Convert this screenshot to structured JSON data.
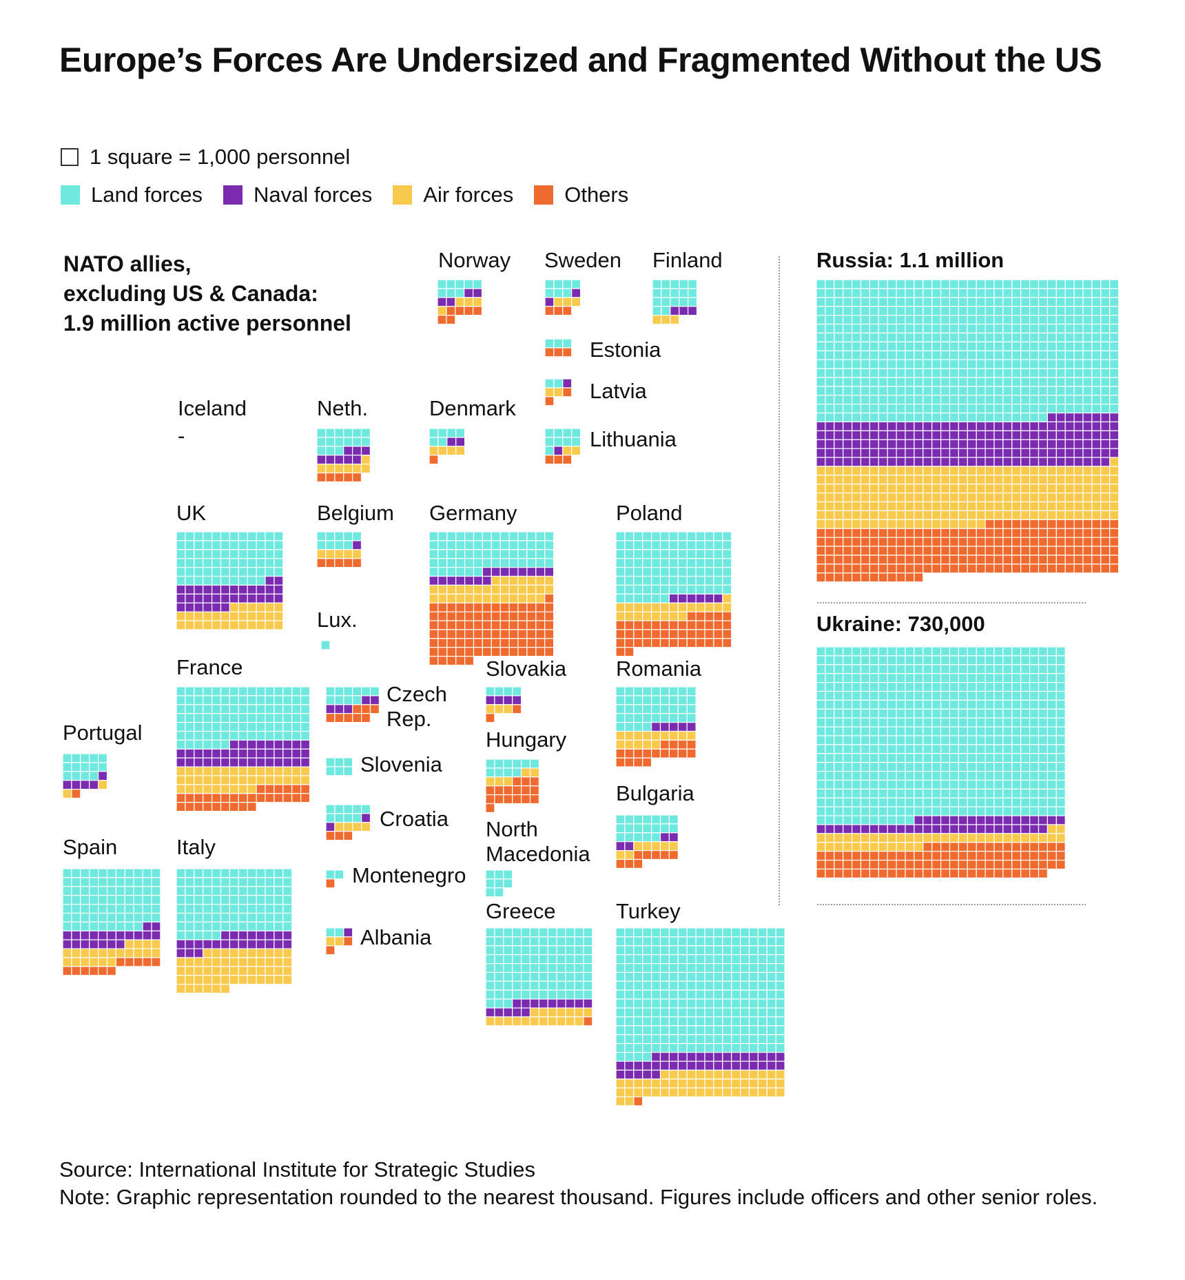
{
  "title": "Europe’s Forces Are Undersized and Fragmented Without the US",
  "legend": {
    "scale": "1 square = 1,000 personnel",
    "items": [
      {
        "label": "Land forces",
        "color": "#6FE8E0"
      },
      {
        "label": "Naval forces",
        "color": "#7A2BB0"
      },
      {
        "label": "Air forces",
        "color": "#F7C94C"
      },
      {
        "label": "Others",
        "color": "#EF6A2E"
      }
    ]
  },
  "subhead": {
    "line1": "NATO allies,",
    "line2": "excluding US & Canada:",
    "line3": "1.9 million active personnel"
  },
  "source": "Source: International Institute for Strategic Studies",
  "note": "Note: Graphic representation rounded to the nearest thousand. Figures include officers and other senior roles.",
  "chart_data": {
    "type": "waffle",
    "unit": "1 square = 1,000 personnel",
    "categories": [
      "Land forces",
      "Naval forces",
      "Air forces",
      "Others"
    ],
    "countries": [
      {
        "name": "Norway",
        "label": "Norway",
        "cols": 5,
        "values": [
          8,
          4,
          4,
          6
        ]
      },
      {
        "name": "Sweden",
        "label": "Sweden",
        "cols": 4,
        "values": [
          7,
          2,
          3,
          3
        ]
      },
      {
        "name": "Finland",
        "label": "Finland",
        "cols": 5,
        "values": [
          17,
          3,
          3,
          0
        ]
      },
      {
        "name": "Estonia",
        "label": "Estonia",
        "cols": 3,
        "values": [
          3,
          0,
          0,
          3
        ]
      },
      {
        "name": "Latvia",
        "label": "Latvia",
        "cols": 3,
        "values": [
          2,
          1,
          2,
          2
        ]
      },
      {
        "name": "Lithuania",
        "label": "Lithuania",
        "cols": 4,
        "values": [
          9,
          1,
          2,
          3
        ]
      },
      {
        "name": "Iceland",
        "label": "Iceland",
        "dash": "-",
        "cols": 1,
        "values": [
          0,
          0,
          0,
          0
        ]
      },
      {
        "name": "Netherlands",
        "label": "Neth.",
        "cols": 6,
        "values": [
          15,
          8,
          7,
          5
        ]
      },
      {
        "name": "Denmark",
        "label": "Denmark",
        "cols": 4,
        "values": [
          6,
          2,
          4,
          1
        ]
      },
      {
        "name": "UK",
        "label": "UK",
        "cols": 12,
        "values": [
          70,
          32,
          30,
          0
        ]
      },
      {
        "name": "Belgium",
        "label": "Belgium",
        "cols": 5,
        "values": [
          9,
          1,
          5,
          5
        ]
      },
      {
        "name": "Germany",
        "label": "Germany",
        "cols": 14,
        "values": [
          62,
          15,
          34,
          90
        ]
      },
      {
        "name": "Poland",
        "label": "Poland",
        "cols": 13,
        "values": [
          97,
          6,
          22,
          46
        ]
      },
      {
        "name": "Luxembourg",
        "label": "Lux.",
        "cols": 1,
        "values": [
          1,
          0,
          0,
          0
        ]
      },
      {
        "name": "France",
        "label": "France",
        "cols": 15,
        "values": [
          96,
          39,
          39,
          30
        ]
      },
      {
        "name": "Czech Republic",
        "label1": "Czech",
        "label2": "Rep.",
        "cols": 6,
        "values": [
          10,
          5,
          0,
          8
        ]
      },
      {
        "name": "Slovakia",
        "label": "Slovakia",
        "cols": 4,
        "values": [
          4,
          4,
          3,
          2
        ]
      },
      {
        "name": "Romania",
        "label": "Romania",
        "cols": 9,
        "values": [
          40,
          5,
          14,
          17
        ]
      },
      {
        "name": "Portugal",
        "label": "Portugal",
        "cols": 5,
        "values": [
          14,
          5,
          2,
          1
        ]
      },
      {
        "name": "Slovenia",
        "label": "Slovenia",
        "cols": 3,
        "values": [
          6,
          0,
          0,
          0
        ]
      },
      {
        "name": "Hungary",
        "label": "Hungary",
        "cols": 6,
        "values": [
          10,
          0,
          5,
          16
        ]
      },
      {
        "name": "Bulgaria",
        "label": "Bulgaria",
        "cols": 7,
        "values": [
          19,
          4,
          7,
          8
        ]
      },
      {
        "name": "Croatia",
        "label": "Croatia",
        "cols": 5,
        "values": [
          9,
          2,
          4,
          3
        ]
      },
      {
        "name": "North Macedonia",
        "label1": "North",
        "label2": "Macedonia",
        "cols": 3,
        "values": [
          8,
          0,
          0,
          0
        ]
      },
      {
        "name": "Spain",
        "label": "Spain",
        "cols": 11,
        "values": [
          75,
          20,
          21,
          11
        ]
      },
      {
        "name": "Italy",
        "label": "Italy",
        "cols": 13,
        "values": [
          96,
          24,
          55,
          0
        ]
      },
      {
        "name": "Montenegro",
        "label": "Montenegro",
        "cols": 2,
        "values": [
          2,
          0,
          0,
          1
        ]
      },
      {
        "name": "Albania",
        "label": "Albania",
        "cols": 3,
        "values": [
          2,
          1,
          2,
          2
        ]
      },
      {
        "name": "Greece",
        "label": "Greece",
        "cols": 12,
        "values": [
          99,
          14,
          18,
          1
        ]
      },
      {
        "name": "Turkey",
        "label": "Turkey",
        "cols": 19,
        "values": [
          270,
          39,
          54,
          1
        ]
      }
    ],
    "others": [
      {
        "name": "Russia",
        "label_name": "Russia:",
        "label_value": "1.1 million",
        "cols": 34,
        "values": [
          536,
          177,
          224,
          197
        ]
      },
      {
        "name": "Ukraine",
        "label_name": "Ukraine:",
        "label_value": "730,000",
        "cols": 28,
        "values": [
          543,
          43,
          42,
          98
        ]
      }
    ]
  }
}
